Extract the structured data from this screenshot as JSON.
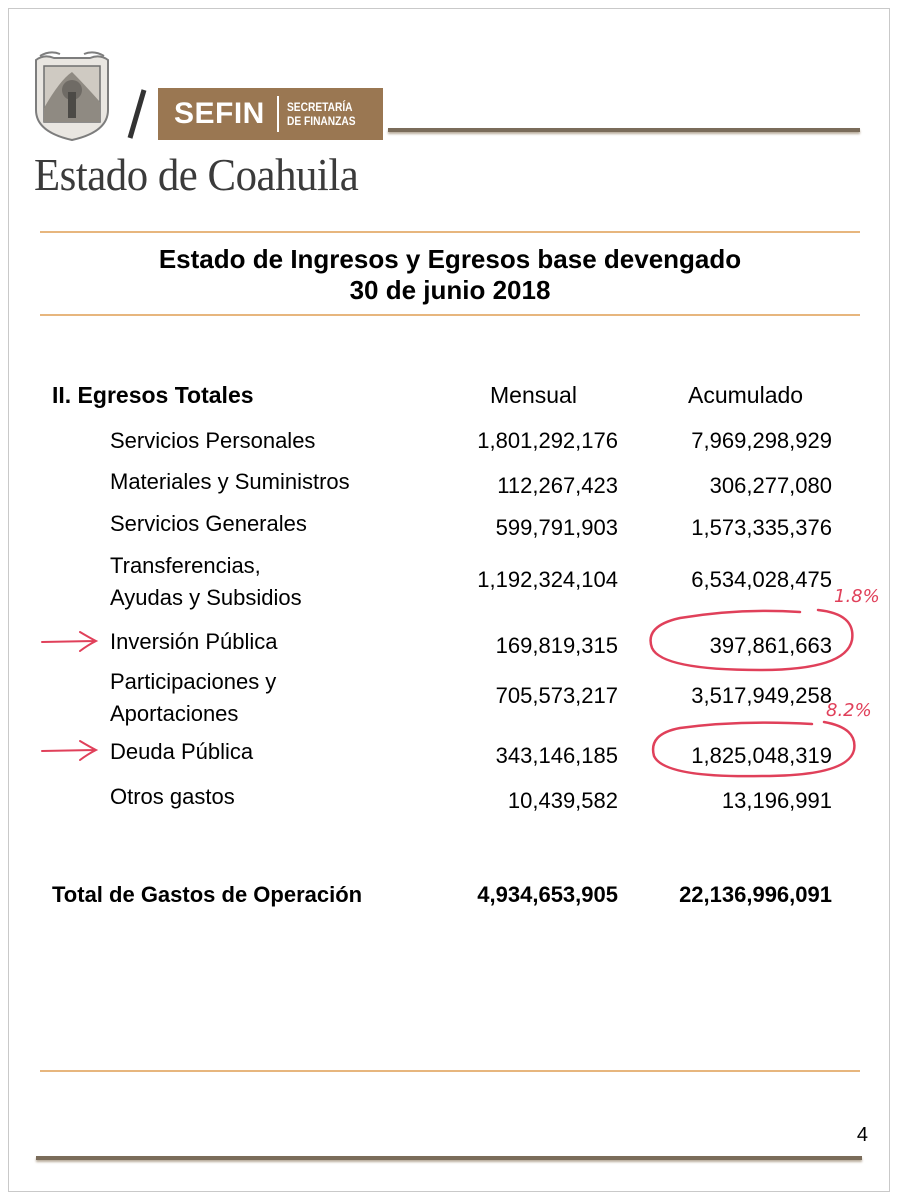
{
  "header": {
    "brand": "SEFIN",
    "brand_sub_line1": "SECRETARÍA",
    "brand_sub_line2": "DE FINANZAS",
    "state_name": "Estado de Coahuila"
  },
  "title": {
    "line1": "Estado de Ingresos y Egresos base devengado",
    "line2": "30 de junio 2018"
  },
  "table": {
    "section": "II. Egresos Totales",
    "col_monthly": "Mensual",
    "col_accumulated": "Acumulado",
    "rows": [
      {
        "label": "Servicios Personales",
        "monthly": "1,801,292,176",
        "accumulated": "7,969,298,929"
      },
      {
        "label": "Materiales y Suministros",
        "monthly": "112,267,423",
        "accumulated": "306,277,080"
      },
      {
        "label": "Servicios Generales",
        "monthly": "599,791,903",
        "accumulated": "1,573,335,376"
      },
      {
        "label_line1": "Transferencias,",
        "label_line2": "Ayudas y Subsidios",
        "monthly": "1,192,324,104",
        "accumulated": "6,534,028,475"
      },
      {
        "label": "Inversión Pública",
        "monthly": "169,819,315",
        "accumulated": "397,861,663"
      },
      {
        "label_line1": "Participaciones y",
        "label_line2": "Aportaciones",
        "monthly": "705,573,217",
        "accumulated": "3,517,949,258"
      },
      {
        "label": "Deuda Pública",
        "monthly": "343,146,185",
        "accumulated": "1,825,048,319"
      },
      {
        "label": "Otros gastos",
        "monthly": "10,439,582",
        "accumulated": "13,196,991"
      }
    ],
    "total": {
      "label": "Total de Gastos de Operación",
      "monthly": "4,934,653,905",
      "accumulated": "22,136,996,091"
    }
  },
  "annotations": {
    "inversion_pct": "1.8%",
    "deuda_pct": "8.2%",
    "color": "#e0405a"
  },
  "page_number": "4",
  "colors": {
    "brand_brown": "#9a7752",
    "rule_orange": "#e7b67e",
    "bar_dark": "#7a6c5a"
  }
}
